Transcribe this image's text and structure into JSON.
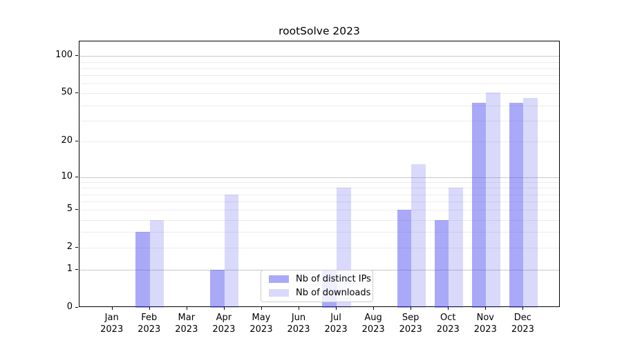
{
  "figure": {
    "title": "rootSolve 2023"
  },
  "chart_data": {
    "type": "bar",
    "title": "rootSolve 2023",
    "categories": [
      "Jan 2023",
      "Feb 2023",
      "Mar 2023",
      "Apr 2023",
      "May 2023",
      "Jun 2023",
      "Jul 2023",
      "Aug 2023",
      "Sep 2023",
      "Oct 2023",
      "Nov 2023",
      "Dec 2023"
    ],
    "series": [
      {
        "key": "ips",
        "name": "Nb of distinct IPs",
        "color": "rgba(64,64,240,0.45)",
        "values": [
          0,
          3,
          0,
          1,
          0,
          0,
          1,
          0,
          5,
          4,
          42,
          42
        ]
      },
      {
        "key": "downloads",
        "name": "Nb of downloads",
        "color": "rgba(64,64,240,0.2)",
        "values": [
          0,
          4,
          0,
          7,
          0,
          0,
          8,
          0,
          13,
          8,
          51,
          46
        ]
      }
    ],
    "y_scale": "log1p",
    "ylim": [
      0,
      131
    ],
    "y_axis_ticks": [
      100,
      50,
      20,
      10,
      5,
      2,
      1,
      0
    ],
    "y_grid_major": [
      1,
      10,
      100
    ],
    "y_grid_minor": [
      2,
      3,
      4,
      5,
      6,
      7,
      8,
      9,
      20,
      30,
      40,
      50,
      60,
      70,
      80,
      90
    ],
    "xlabel": "",
    "ylabel": "",
    "grid": true,
    "legend_position": "lower center"
  },
  "legend": {
    "items": [
      {
        "label": "Nb of distinct IPs"
      },
      {
        "label": "Nb of downloads"
      }
    ]
  },
  "colors": {
    "ips_bar": "rgba(64,64,240,0.45)",
    "downloads_bar": "rgba(64,64,240,0.2)",
    "grid_minor": "#ececec",
    "grid_major": "#c9c9c9",
    "axis_frame": "#000000",
    "legend_border": "#cccccc",
    "legend_background": "rgba(255,255,255,0.8)",
    "text": "#000000"
  }
}
